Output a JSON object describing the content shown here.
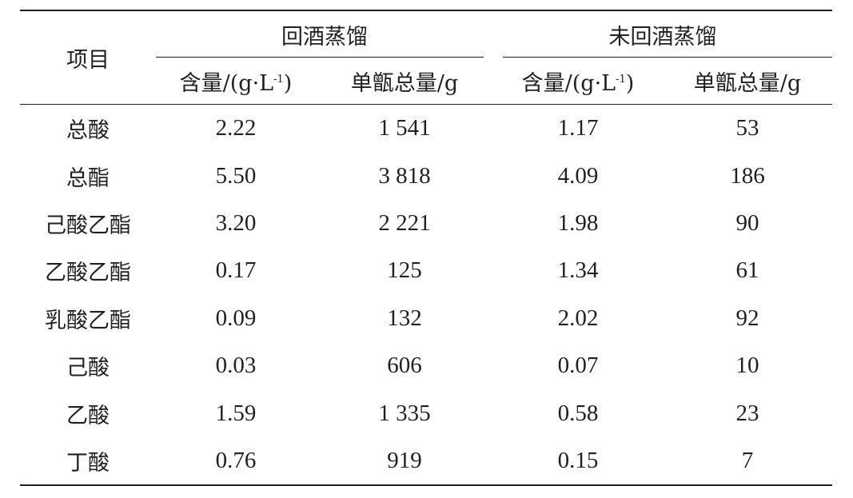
{
  "header": {
    "item": "项目",
    "group_return": "回酒蒸馏",
    "group_no_return": "未回酒蒸馏",
    "sub_content_prefix": "含量/(g·L",
    "sub_content_sup": "-1",
    "sub_content_suffix": ")",
    "sub_total": "单甑总量/g"
  },
  "rows": [
    {
      "item": "总酸",
      "a_content": "2.22",
      "a_total": "1 541",
      "b_content": "1.17",
      "b_total": "53"
    },
    {
      "item": "总酯",
      "a_content": "5.50",
      "a_total": "3 818",
      "b_content": "4.09",
      "b_total": "186"
    },
    {
      "item": "己酸乙酯",
      "a_content": "3.20",
      "a_total": "2 221",
      "b_content": "1.98",
      "b_total": "90"
    },
    {
      "item": "乙酸乙酯",
      "a_content": "0.17",
      "a_total": "125",
      "b_content": "1.34",
      "b_total": "61"
    },
    {
      "item": "乳酸乙酯",
      "a_content": "0.09",
      "a_total": "132",
      "b_content": "2.02",
      "b_total": "92"
    },
    {
      "item": "己酸",
      "a_content": "0.03",
      "a_total": "606",
      "b_content": "0.07",
      "b_total": "10"
    },
    {
      "item": "乙酸",
      "a_content": "1.59",
      "a_total": "1 335",
      "b_content": "0.58",
      "b_total": "23"
    },
    {
      "item": "丁酸",
      "a_content": "0.76",
      "a_total": "919",
      "b_content": "0.15",
      "b_total": "7"
    }
  ]
}
